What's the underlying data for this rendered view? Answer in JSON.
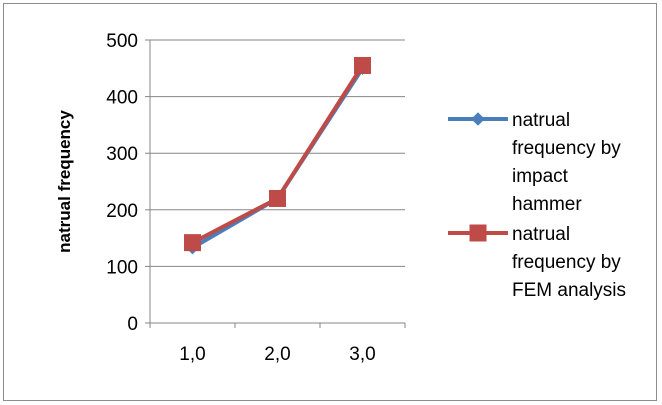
{
  "chart_data": {
    "type": "line",
    "categories": [
      "1,0",
      "2,0",
      "3,0"
    ],
    "series": [
      {
        "name": "natrual frequency by impact hammer",
        "name_lines": [
          "natrual",
          "frequency by",
          "impact",
          "hammer"
        ],
        "values": [
          133,
          220,
          450
        ],
        "color": "#4a7ebb",
        "marker": "diamond"
      },
      {
        "name": "natrual frequency by FEM analysis",
        "name_lines": [
          "natrual",
          "frequency by",
          "FEM analysis"
        ],
        "values": [
          142,
          220,
          455
        ],
        "color": "#be4b48",
        "marker": "square"
      }
    ],
    "ylabel": "natrual frequency",
    "xlabel": "",
    "ylim": [
      0,
      500
    ],
    "yticks": [
      "0",
      "100",
      "200",
      "300",
      "400",
      "500"
    ],
    "grid": true,
    "legend_position": "right"
  }
}
